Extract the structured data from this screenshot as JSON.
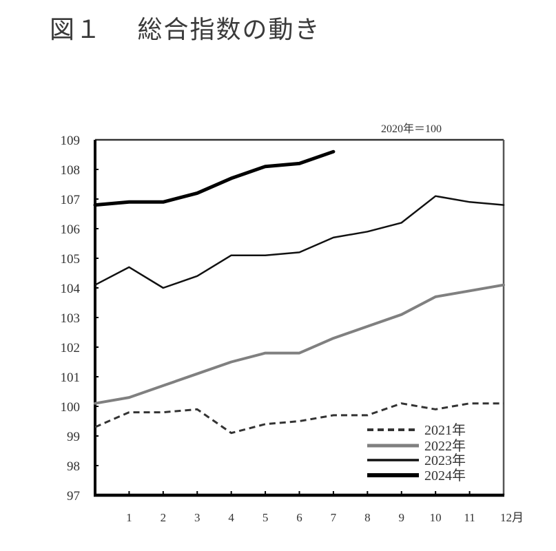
{
  "title": "図１　 総合指数の動き",
  "chart_data": {
    "type": "line",
    "title": "図１　総合指数の動き",
    "base_note": "2020年＝100",
    "xlabel": "月",
    "ylabel": "",
    "x": [
      0,
      1,
      2,
      3,
      4,
      5,
      6,
      7,
      8,
      9,
      10,
      11,
      12
    ],
    "x_tick_labels": [
      "1",
      "2",
      "3",
      "4",
      "5",
      "6",
      "7",
      "8",
      "9",
      "10",
      "11",
      "12月"
    ],
    "y_tick_labels": [
      "97",
      "98",
      "99",
      "100",
      "101",
      "102",
      "103",
      "104",
      "105",
      "106",
      "107",
      "108",
      "109"
    ],
    "ylim": [
      97,
      109
    ],
    "xlim": [
      0,
      12
    ],
    "grid": false,
    "legend_position": "lower right",
    "series": [
      {
        "name": "2021年",
        "style": "dashed",
        "color": "#333333",
        "width": 3,
        "values": [
          99.3,
          99.8,
          99.8,
          99.9,
          99.1,
          99.4,
          99.5,
          99.7,
          99.7,
          100.1,
          99.9,
          100.1,
          100.1
        ]
      },
      {
        "name": "2022年",
        "style": "solid",
        "color": "#808080",
        "width": 4,
        "values": [
          100.1,
          100.3,
          100.7,
          101.1,
          101.5,
          101.8,
          101.8,
          102.3,
          102.7,
          103.1,
          103.7,
          103.9,
          104.1
        ]
      },
      {
        "name": "2023年",
        "style": "solid",
        "color": "#111111",
        "width": 2.5,
        "values": [
          104.1,
          104.7,
          104.0,
          104.4,
          105.1,
          105.1,
          105.2,
          105.7,
          105.9,
          106.2,
          107.1,
          106.9,
          106.8
        ]
      },
      {
        "name": "2024年",
        "style": "solid",
        "color": "#000000",
        "width": 5,
        "values": [
          106.8,
          106.9,
          106.9,
          107.2,
          107.7,
          108.1,
          108.2,
          108.6
        ]
      }
    ]
  }
}
